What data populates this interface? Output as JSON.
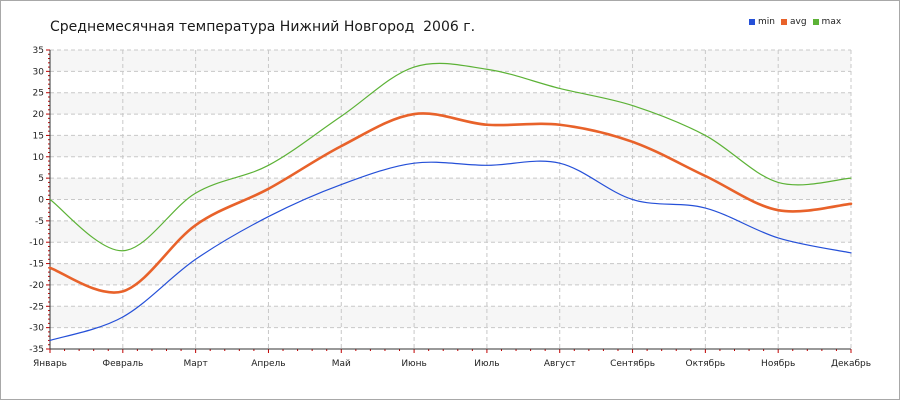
{
  "colors": {
    "min": "#2550d8",
    "avg": "#e8622a",
    "max": "#5cb236",
    "grid": "#c8c8c8",
    "band": "#f6f6f6",
    "axis": "#333333",
    "tick": "#c00000"
  },
  "chart_data": {
    "type": "line",
    "title": "Среднемесячная температура Нижний Новгород  2006 г.",
    "xlabel": "",
    "ylabel": "",
    "categories": [
      "Январь",
      "Февраль",
      "Март",
      "Апрель",
      "Май",
      "Июнь",
      "Июль",
      "Август",
      "Сентябрь",
      "Октябрь",
      "Ноябрь",
      "Декабрь"
    ],
    "ylim": [
      -35,
      35
    ],
    "yticks": [
      35,
      30,
      25,
      20,
      15,
      10,
      5,
      0,
      -5,
      -10,
      -15,
      -20,
      -25,
      -30,
      -35
    ],
    "grid": true,
    "legend_position": "top-right",
    "series": [
      {
        "name": "min",
        "values": [
          -33,
          -27.5,
          -14,
          -4,
          3.5,
          8.5,
          8,
          8.5,
          0,
          -2,
          -9,
          -12.5
        ]
      },
      {
        "name": "avg",
        "values": [
          -16,
          -21.5,
          -6,
          2.5,
          12.5,
          20,
          17.5,
          17.5,
          13.5,
          5.5,
          -2.5,
          -1
        ]
      },
      {
        "name": "max",
        "values": [
          0,
          -12,
          1.5,
          8,
          19.5,
          31,
          30.5,
          26,
          22,
          15,
          4,
          5
        ]
      }
    ]
  }
}
